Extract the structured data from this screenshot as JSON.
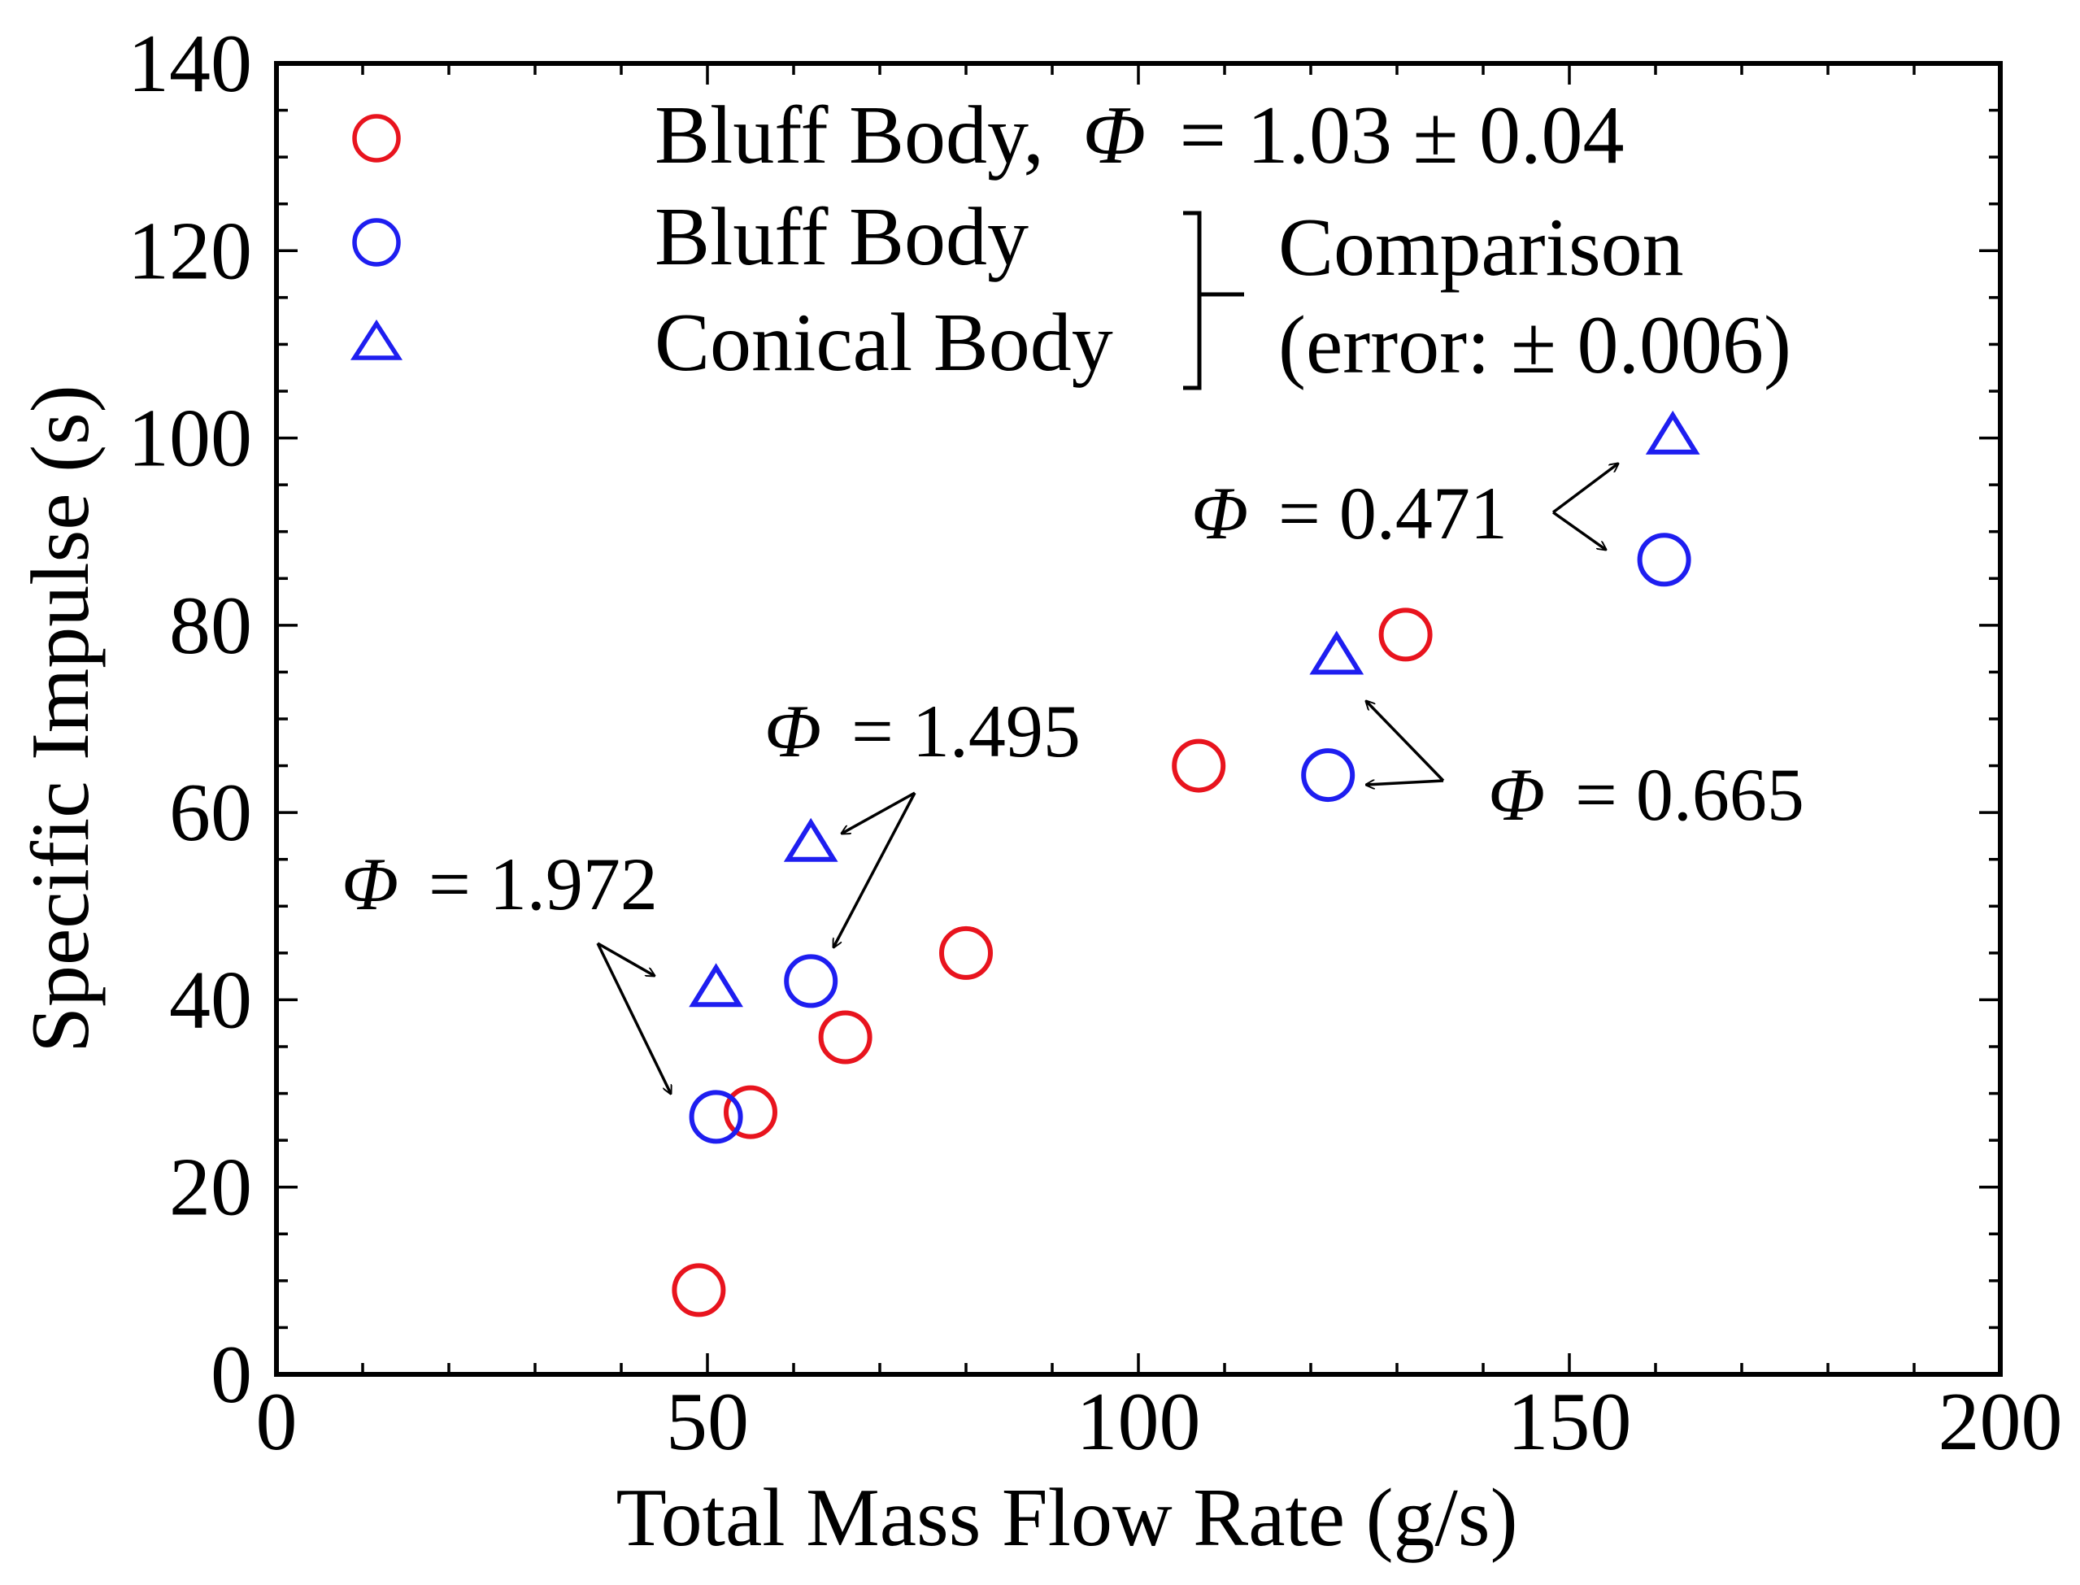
{
  "chart_data": {
    "type": "scatter",
    "title": "",
    "xlabel": "Total Mass Flow Rate (g/s)",
    "ylabel": "Specific Impulse (s)",
    "xlim": [
      0,
      200
    ],
    "ylim": [
      0,
      140
    ],
    "x_ticks": [
      0,
      50,
      100,
      150,
      200
    ],
    "y_ticks": [
      0,
      20,
      40,
      60,
      80,
      100,
      120,
      140
    ],
    "x_tick_labels": [
      "0",
      "50",
      "100",
      "150",
      "200"
    ],
    "y_tick_labels": [
      "0",
      "20",
      "40",
      "60",
      "80",
      "100",
      "120",
      "140"
    ],
    "grid": false,
    "legend_position": "top-left",
    "series": [
      {
        "name": "Bluff Body, Φ = 1.03 ± 0.04",
        "legend_label": "Bluff Body,",
        "legend_phi": "Φ",
        "legend_value": "= 1.03 ± 0.04",
        "marker": "circle",
        "color": "#e8141e",
        "points": [
          {
            "x": 49,
            "y": 9
          },
          {
            "x": 55,
            "y": 28
          },
          {
            "x": 66,
            "y": 36
          },
          {
            "x": 80,
            "y": 45
          },
          {
            "x": 107,
            "y": 65
          },
          {
            "x": 131,
            "y": 79
          }
        ]
      },
      {
        "name": "Bluff Body",
        "legend_label": "Bluff Body",
        "marker": "circle",
        "color": "#1e1ef0",
        "points": [
          {
            "x": 51,
            "y": 27.5
          },
          {
            "x": 62,
            "y": 42
          },
          {
            "x": 122,
            "y": 64
          },
          {
            "x": 161,
            "y": 87
          }
        ]
      },
      {
        "name": "Conical Body",
        "legend_label": "Conical Body",
        "marker": "triangle",
        "color": "#1e1ef0",
        "points": [
          {
            "x": 51,
            "y": 41
          },
          {
            "x": 62,
            "y": 56.5
          },
          {
            "x": 123,
            "y": 76.5
          },
          {
            "x": 162,
            "y": 100
          }
        ]
      }
    ],
    "legend_group": {
      "label": "Comparison",
      "error_label": "(error: ± 0.006)"
    },
    "annotations": [
      {
        "phi": "Φ",
        "text": "= 1.972",
        "targets": [
          {
            "x": 51,
            "y": 41
          },
          {
            "x": 51,
            "y": 27.5
          }
        ]
      },
      {
        "phi": "Φ",
        "text": "= 1.495",
        "targets": [
          {
            "x": 62,
            "y": 56.5
          },
          {
            "x": 62,
            "y": 42
          }
        ]
      },
      {
        "phi": "Φ",
        "text": "= 0.665",
        "targets": [
          {
            "x": 123,
            "y": 76.5
          },
          {
            "x": 122,
            "y": 64
          }
        ]
      },
      {
        "phi": "Φ",
        "text": "= 0.471",
        "targets": [
          {
            "x": 162,
            "y": 100
          },
          {
            "x": 161,
            "y": 87
          }
        ]
      }
    ]
  }
}
